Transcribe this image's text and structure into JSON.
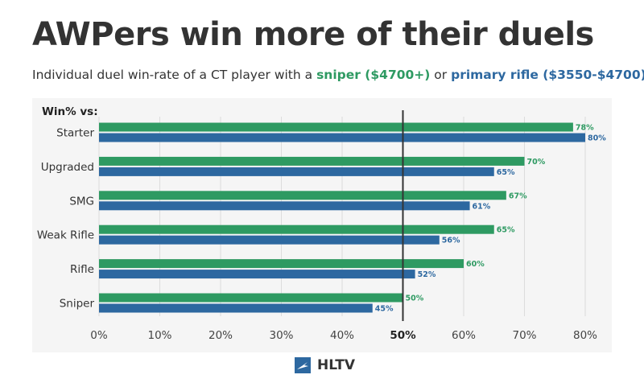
{
  "title": "AWPers win more of their duels",
  "subtitle": {
    "prefix": "Individual duel win-rate of a CT player with a ",
    "sniper": "sniper ($4700+)",
    "middle": " or ",
    "rifle": "primary rifle ($3550-$4700)"
  },
  "footer": {
    "logo_text": "HLTV",
    "logo_icon": "hltv-logo-icon"
  },
  "colors": {
    "sniper": "#2e9a62",
    "rifle": "#2d68a0",
    "panel": "#f5f5f5",
    "grid": "#dcdcdc",
    "refline": "#333333"
  },
  "chart_data": {
    "type": "bar",
    "orientation": "horizontal",
    "category_header": "Win% vs:",
    "categories": [
      "Starter",
      "Upgraded",
      "SMG",
      "Weak Rifle",
      "Rifle",
      "Sniper"
    ],
    "series": [
      {
        "key": "sniper",
        "values": [
          78,
          70,
          67,
          65,
          60,
          50
        ],
        "labels": [
          "78%",
          "70%",
          "67%",
          "65%",
          "60%",
          "50%"
        ]
      },
      {
        "key": "rifle",
        "values": [
          80,
          65,
          61,
          56,
          52,
          45
        ],
        "labels": [
          "80%",
          "65%",
          "61%",
          "56%",
          "52%",
          "45%"
        ]
      }
    ],
    "xlim": [
      0,
      80
    ],
    "xticks": [
      0,
      10,
      20,
      30,
      40,
      50,
      60,
      70,
      80
    ],
    "xtick_labels": [
      "0%",
      "10%",
      "20%",
      "30%",
      "40%",
      "50%",
      "60%",
      "70%",
      "80%"
    ],
    "reference_line": 50,
    "grid": true
  }
}
